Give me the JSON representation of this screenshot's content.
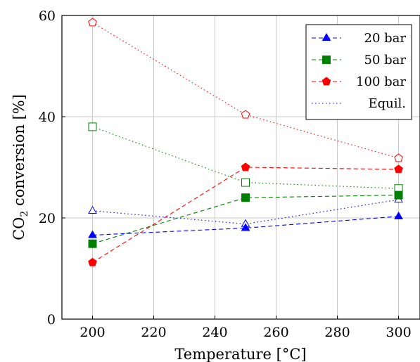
{
  "chart_data": {
    "type": "line",
    "xlabel": "Temperature [°C]",
    "ylabel": {
      "prefix": "CO",
      "subscript": "2",
      "suffix": " conversion [%]"
    },
    "xlim": [
      190,
      307
    ],
    "ylim": [
      0,
      60
    ],
    "x_ticks": [
      200,
      220,
      240,
      260,
      280,
      300
    ],
    "y_ticks": [
      0,
      20,
      40,
      60
    ],
    "grid": true,
    "legend_position": "top-right",
    "series": [
      {
        "name": "20 bar",
        "color": "#0000ff",
        "dash": "dashed",
        "marker": "triangle",
        "filled": true,
        "x": [
          200,
          250,
          300
        ],
        "y": [
          16.6,
          18.0,
          20.3
        ]
      },
      {
        "name": "50 bar",
        "color": "#008000",
        "dash": "dashed",
        "marker": "square",
        "filled": true,
        "x": [
          200,
          250,
          300
        ],
        "y": [
          14.9,
          24.0,
          24.5
        ]
      },
      {
        "name": "100 bar",
        "color": "#ff0000",
        "dash": "dashed",
        "marker": "pentagon",
        "filled": true,
        "x": [
          200,
          250,
          300
        ],
        "y": [
          11.2,
          30.0,
          29.6
        ]
      },
      {
        "name": "Equil.",
        "color": "#0000ff",
        "dash": "dotted",
        "marker": "none",
        "filled": false,
        "x": [],
        "y": []
      }
    ],
    "equilibrium_series": [
      {
        "color": "#0000ff",
        "marker": "triangle",
        "x": [
          200,
          250,
          300
        ],
        "y": [
          21.4,
          18.8,
          23.6
        ]
      },
      {
        "color": "#008000",
        "marker": "square",
        "x": [
          200,
          250,
          300
        ],
        "y": [
          38.0,
          27.0,
          25.8
        ]
      },
      {
        "color": "#ff0000",
        "marker": "pentagon",
        "x": [
          200,
          250,
          300
        ],
        "y": [
          58.6,
          40.4,
          31.8
        ]
      }
    ]
  }
}
